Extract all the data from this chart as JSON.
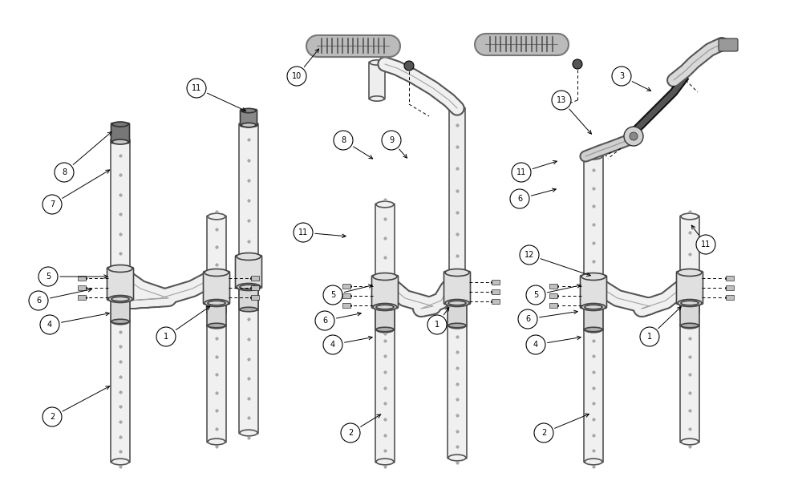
{
  "fig_width": 10.0,
  "fig_height": 6.15,
  "dpi": 100,
  "bg": "#ffffff",
  "lc": "#222222",
  "tube_fill": "#f0f0f0",
  "tube_edge": "#555555",
  "clamp_fill": "#e0e0e0",
  "clamp_edge": "#444444",
  "small_fill": "#d8d8d8",
  "dark_fill": "#888888",
  "ribbed_dark": "#555555"
}
